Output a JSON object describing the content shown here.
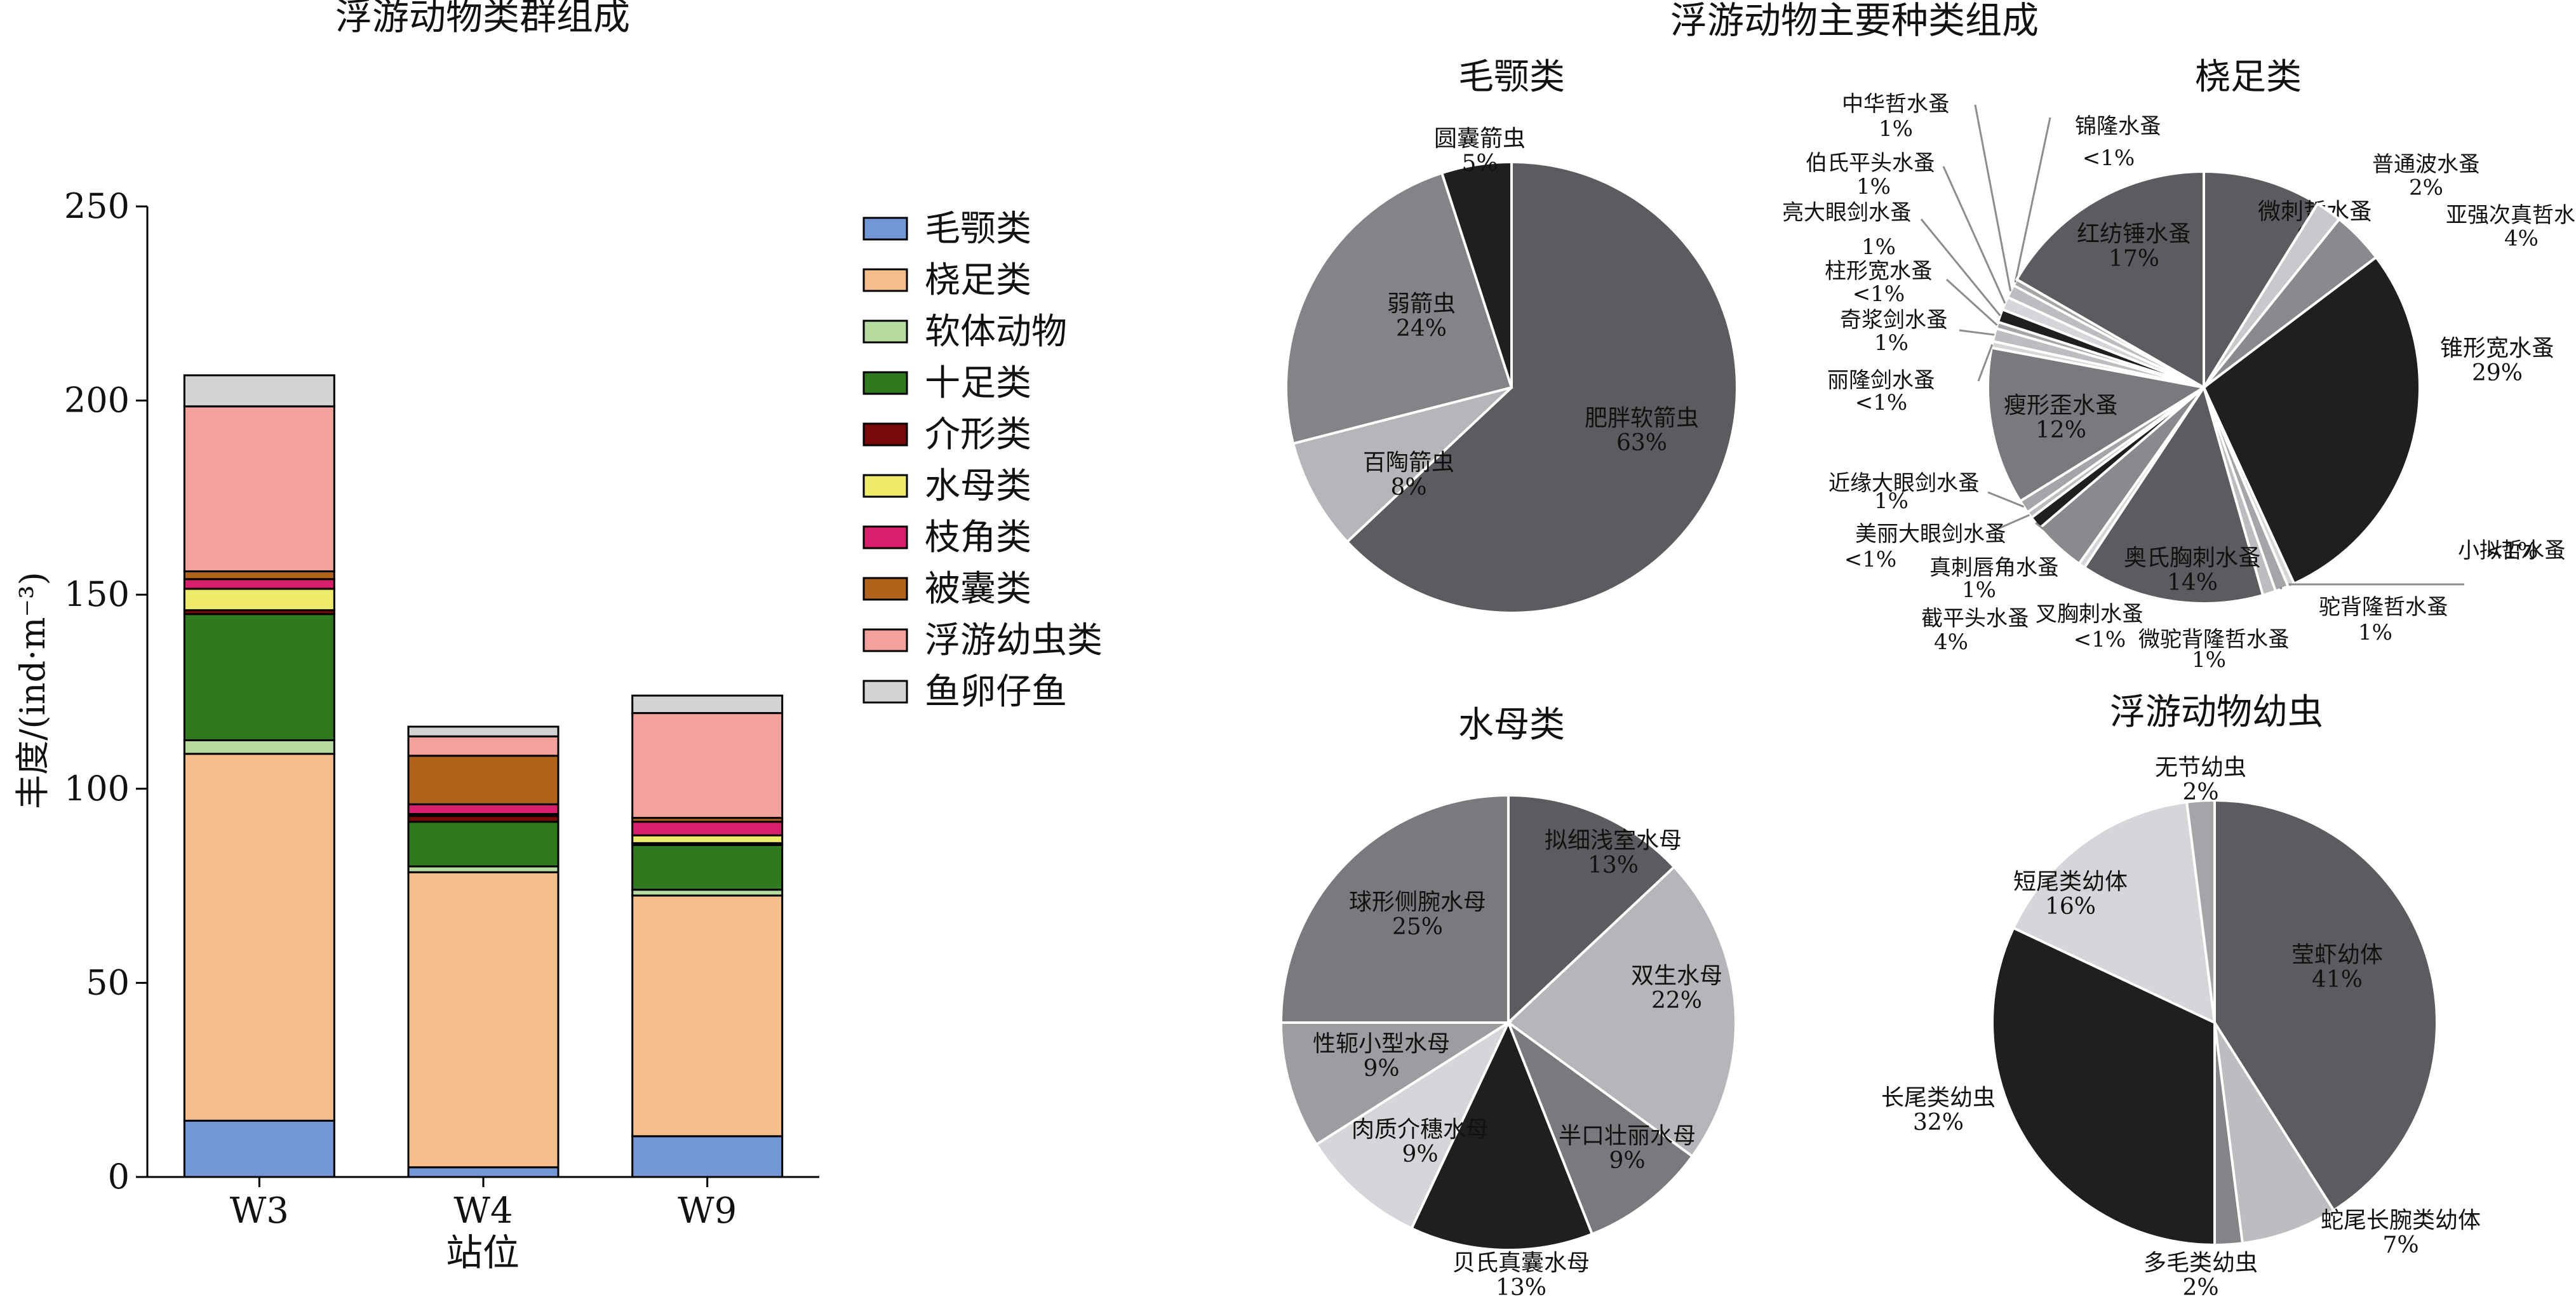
{
  "chart_data": [
    {
      "type": "bar",
      "stacked": true,
      "title": "浮游动物类群组成",
      "xlabel": "站位",
      "ylabel": "丰度/(ind·m⁻³)",
      "ylim": [
        0,
        250
      ],
      "yticks": [
        0,
        50,
        100,
        150,
        200,
        250
      ],
      "categories": [
        "W3",
        "W4",
        "W9"
      ],
      "legend_position": "right",
      "series": [
        {
          "name": "毛颚类",
          "color": "#7396d6",
          "values": [
            14.5,
            2.5,
            10.5
          ]
        },
        {
          "name": "桡足类",
          "color": "#f5bd8a",
          "values": [
            94.5,
            76.0,
            62.0
          ]
        },
        {
          "name": "软体动物",
          "color": "#b5dba0",
          "values": [
            3.5,
            1.5,
            1.5
          ]
        },
        {
          "name": "十足类",
          "color": "#2f7a1e",
          "values": [
            32.5,
            11.5,
            11.5
          ]
        },
        {
          "name": "介形类",
          "color": "#7a0a0a",
          "values": [
            1.0,
            1.5,
            0.5
          ]
        },
        {
          "name": "水母类",
          "color": "#eeea6a",
          "values": [
            5.5,
            0.5,
            2.0
          ]
        },
        {
          "name": "枝角类",
          "color": "#d81f6c",
          "values": [
            2.5,
            2.5,
            3.5
          ]
        },
        {
          "name": "被囊类",
          "color": "#b0631b",
          "values": [
            2.0,
            12.5,
            1.0
          ]
        },
        {
          "name": "浮游幼虫类",
          "color": "#f2a19b",
          "values": [
            42.5,
            5.0,
            27.0
          ]
        },
        {
          "name": "鱼卵仔鱼",
          "color": "#d3d3d6",
          "values": [
            8.0,
            2.5,
            4.5
          ]
        }
      ]
    },
    {
      "type": "pie",
      "group_title": "浮游动物主要种类组成",
      "title": "毛颚类",
      "slices": [
        {
          "label": "肥胖软箭虫",
          "pct_label": "63%",
          "value": 63,
          "color": "#5c5b60"
        },
        {
          "label": "百陶箭虫",
          "pct_label": "8%",
          "value": 8,
          "color": "#b6b5b9"
        },
        {
          "label": "弱箭虫",
          "pct_label": "24%",
          "value": 24,
          "color": "#848388"
        },
        {
          "label": "圆囊箭虫",
          "pct_label": "5%",
          "value": 5,
          "color": "#1f1f22"
        }
      ]
    },
    {
      "type": "pie",
      "title": "桡足类",
      "slices": [
        {
          "label": "微刺哲水蚤",
          "pct_label": "9%",
          "value": 9,
          "color": "#5c5b60"
        },
        {
          "label": "普通波水蚤",
          "pct_label": "2%",
          "value": 2,
          "color": "#c9c8cc"
        },
        {
          "label": "亚强次真哲水蚤",
          "pct_label": "4%",
          "value": 4,
          "color": "#8a898e"
        },
        {
          "label": "锥形宽水蚤",
          "pct_label": "29%",
          "value": 29,
          "color": "#1f1f22"
        },
        {
          "label": "小拟哲水蚤",
          "pct_label": "<1%",
          "value": 0.5,
          "color": "#d6d5d9"
        },
        {
          "label": "驼背隆哲水蚤",
          "pct_label": "1%",
          "value": 1,
          "color": "#a5a4a8"
        },
        {
          "label": "微驼背隆哲水蚤",
          "pct_label": "1%",
          "value": 1,
          "color": "#bdbcc0"
        },
        {
          "label": "奥氏胸刺水蚤",
          "pct_label": "14%",
          "value": 14,
          "color": "#5c5b60"
        },
        {
          "label": "叉胸刺水蚤",
          "pct_label": "<1%",
          "value": 0.5,
          "color": "#d6d5d9"
        },
        {
          "label": "截平头水蚤",
          "pct_label": "4%",
          "value": 4,
          "color": "#8a898e"
        },
        {
          "label": "真刺唇角水蚤",
          "pct_label": "1%",
          "value": 1,
          "color": "#1f1f22"
        },
        {
          "label": "美丽大眼剑水蚤",
          "pct_label": "<1%",
          "value": 0.5,
          "color": "#bdbcc0"
        },
        {
          "label": "近缘大眼剑水蚤",
          "pct_label": "1%",
          "value": 1,
          "color": "#a5a4a8"
        },
        {
          "label": "瘦形歪水蚤",
          "pct_label": "12%",
          "value": 12,
          "color": "#7a797e"
        },
        {
          "label": "丽隆剑水蚤",
          "pct_label": "<1%",
          "value": 0.5,
          "color": "#d6d5d9"
        },
        {
          "label": "奇浆剑水蚤",
          "pct_label": "1%",
          "value": 1,
          "color": "#bdbcc0"
        },
        {
          "label": "柱形宽水蚤",
          "pct_label": "<1%",
          "value": 0.5,
          "color": "#a5a4a8"
        },
        {
          "label": "亮大眼剑水蚤",
          "pct_label": "1%",
          "value": 1,
          "color": "#1f1f22"
        },
        {
          "label": "伯氏平头水蚤",
          "pct_label": "1%",
          "value": 1,
          "color": "#d6d5d9"
        },
        {
          "label": "中华哲水蚤",
          "pct_label": "1%",
          "value": 1,
          "color": "#bdbcc0"
        },
        {
          "label": "锦隆水蚤",
          "pct_label": "<1%",
          "value": 0.5,
          "color": "#a5a4a8"
        },
        {
          "label": "红纺锤水蚤",
          "pct_label": "17%",
          "value": 17,
          "color": "#5c5b60"
        }
      ]
    },
    {
      "type": "pie",
      "title": "水母类",
      "slices": [
        {
          "label": "拟细浅室水母",
          "pct_label": "13%",
          "value": 13,
          "color": "#5c5b60"
        },
        {
          "label": "双生水母",
          "pct_label": "22%",
          "value": 22,
          "color": "#b6b5b9"
        },
        {
          "label": "半口壮丽水母",
          "pct_label": "9%",
          "value": 9,
          "color": "#7a797e"
        },
        {
          "label": "贝氏真囊水母",
          "pct_label": "13%",
          "value": 13,
          "color": "#1f1f22"
        },
        {
          "label": "肉质介穗水母",
          "pct_label": "9%",
          "value": 9,
          "color": "#d6d5d9"
        },
        {
          "label": "性轭小型水母",
          "pct_label": "9%",
          "value": 9,
          "color": "#9d9ca1"
        },
        {
          "label": "球形侧腕水母",
          "pct_label": "25%",
          "value": 25,
          "color": "#7a797e"
        }
      ]
    },
    {
      "type": "pie",
      "title": "浮游动物幼虫",
      "slices": [
        {
          "label": "莹虾幼体",
          "pct_label": "41%",
          "value": 41,
          "color": "#5c5b60"
        },
        {
          "label": "蛇尾长腕类幼体",
          "pct_label": "7%",
          "value": 7,
          "color": "#bdbcc0"
        },
        {
          "label": "多毛类幼虫",
          "pct_label": "2%",
          "value": 2,
          "color": "#848388"
        },
        {
          "label": "长尾类幼虫",
          "pct_label": "32%",
          "value": 32,
          "color": "#1f1f22"
        },
        {
          "label": "短尾类幼体",
          "pct_label": "16%",
          "value": 16,
          "color": "#d6d5d9"
        },
        {
          "label": "无节幼虫",
          "pct_label": "2%",
          "value": 2,
          "color": "#a5a4a8"
        }
      ]
    }
  ]
}
